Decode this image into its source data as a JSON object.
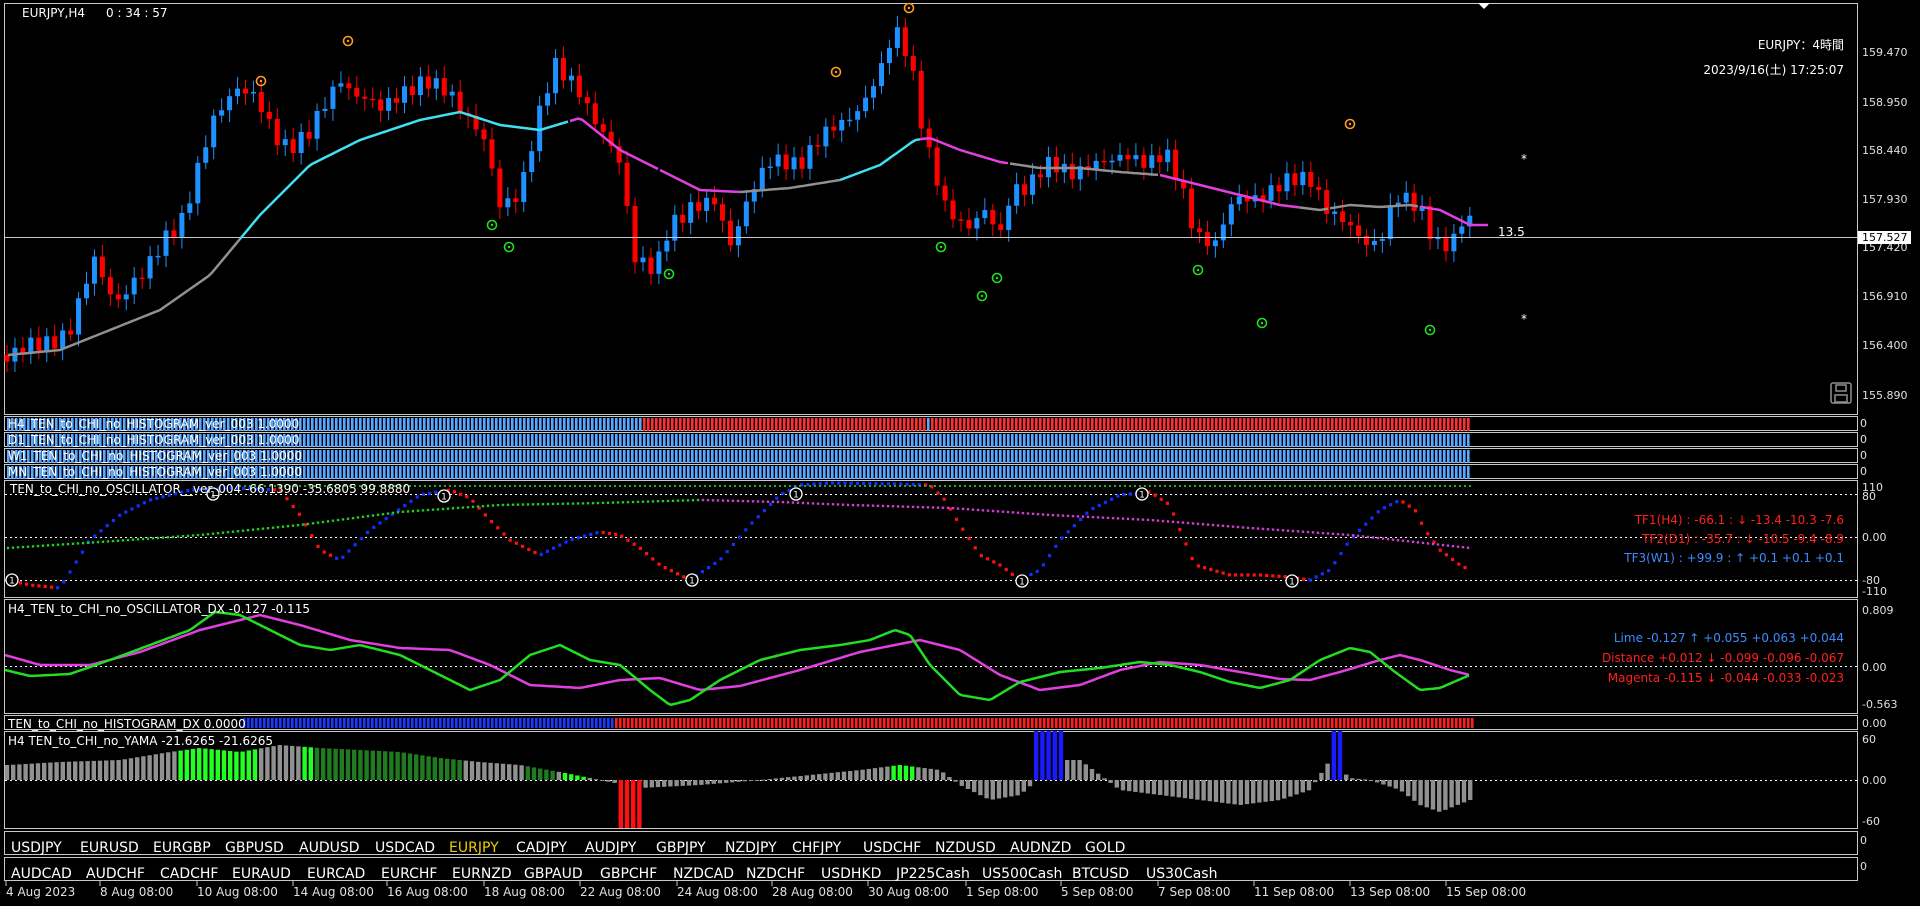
{
  "window": {
    "symbol_label": "EURJPY,H4",
    "countdown": "0 : 34 : 57"
  },
  "overlay": {
    "title": "EURJPY：4時間",
    "datetime": "2023/9/16(土) 17:25:07",
    "level_label": "13.5",
    "star": "*"
  },
  "main_axis": {
    "ticks": [
      "159.470",
      "158.950",
      "158.440",
      "157.930",
      "157.420",
      "156.910",
      "156.400",
      "155.890"
    ],
    "current_price": "157.527"
  },
  "histogram_rows": [
    {
      "label": "H4_TEN_to_CHI_no_HISTOGRAM_ver_003 1.0000",
      "scale": "0"
    },
    {
      "label": "D1_TEN_to_CHI_no_HISTOGRAM_ver_003 1.0000",
      "scale": "0"
    },
    {
      "label": "W1_TEN_to_CHI_no_HISTOGRAM_ver_003 1.0000",
      "scale": "0"
    },
    {
      "label": "MN_TEN_to_CHI_no_HISTOGRAM_ver_003 1.0000",
      "scale": "0"
    }
  ],
  "oscillator": {
    "label": "TEN_to_CHI_no_OSCILLATOR__ver_004 -66.1390 -35.6805 99.8880",
    "axis": [
      "110",
      "80",
      "0.00",
      "-80",
      "-110"
    ],
    "marker": "1",
    "rows": [
      {
        "text": "TF1(H4) : -66.1  :  ↓  -13.4  -10.3  -7.6",
        "color": "#ff2020"
      },
      {
        "text": "TF2(D1) : -35.7  :  ↓  -10.5  -9.4  -8.9",
        "color": "#ff2020"
      },
      {
        "text": "TF3(W1) : +99.9  :  ↑  +0.1  +0.1  +0.1",
        "color": "#3d8bff"
      }
    ]
  },
  "dx": {
    "label": "H4_TEN_to_CHI_no_OSCILLATOR_DX -0.127 -0.115",
    "axis": [
      "0.809",
      "0.00",
      "-0.563"
    ],
    "rows": [
      {
        "text": "Lime -0.127 ↑  +0.055 +0.063 +0.044",
        "color": "#3d8bff"
      },
      {
        "text": "Distance +0.012 ↓  -0.099 -0.096 -0.067",
        "color": "#ff2020"
      },
      {
        "text": "Magenta -0.115 ↓  -0.044 -0.033 -0.023",
        "color": "#ff2020"
      }
    ]
  },
  "hist_dx": {
    "label": "TEN_to_CHI_no_HISTOGRAM_DX 0.0000",
    "axis": "0.00"
  },
  "yama": {
    "label": "H4  TEN_to_CHI_no_YAMA  -21.6265 -21.6265",
    "axis": [
      "60",
      "0.00",
      "-60"
    ]
  },
  "symbols_row1": [
    "USDJPY",
    "EURUSD",
    "EURGBP",
    "GBPUSD",
    "AUDUSD",
    "USDCAD",
    "EURJPY",
    "CADJPY",
    "AUDJPY",
    "GBPJPY",
    "NZDJPY",
    "CHFJPY",
    "USDCHF",
    "NZDUSD",
    "AUDNZD",
    "GOLD"
  ],
  "symbols_row2": [
    "AUDCAD",
    "AUDCHF",
    "CADCHF",
    "EURAUD",
    "EURCAD",
    "EURCHF",
    "EURNZD",
    "GBPAUD",
    "GBPCHF",
    "NZDCAD",
    "NZDCHF",
    "USDHKD",
    "JP225Cash",
    "US500Cash",
    "BTCUSD",
    "US30Cash"
  ],
  "active_symbol": "EURJPY",
  "symbol_scale": [
    "0",
    "0"
  ],
  "time_axis": [
    "4 Aug 2023",
    "8 Aug 08:00",
    "10 Aug 08:00",
    "14 Aug 08:00",
    "16 Aug 08:00",
    "18 Aug 08:00",
    "22 Aug 08:00",
    "24 Aug 08:00",
    "28 Aug 08:00",
    "30 Aug 08:00",
    "1 Sep 08:00",
    "5 Sep 08:00",
    "7 Sep 08:00",
    "11 Sep 08:00",
    "13 Sep 08:00",
    "15 Sep 08:00"
  ],
  "colors": {
    "bull": "#1e90ff",
    "bear": "#ff0000",
    "ma_cyan": "#40e0f0",
    "ma_magenta": "#e040e0",
    "ma_gray": "#909090",
    "lime": "#22dd22",
    "grid": "#c8c8c8",
    "active_symbol": "#e8d000"
  }
}
